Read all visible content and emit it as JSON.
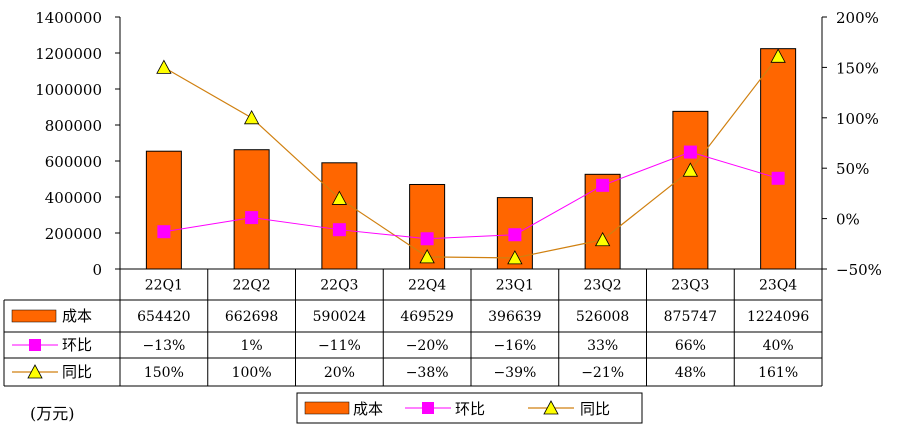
{
  "chart_data": {
    "type": "bar+line",
    "categories": [
      "22Q1",
      "22Q2",
      "22Q3",
      "22Q4",
      "23Q1",
      "23Q2",
      "23Q3",
      "23Q4"
    ],
    "series": [
      {
        "name": "成本",
        "kind": "bar",
        "axis": "left",
        "values": [
          654420,
          662698,
          590024,
          469529,
          396639,
          526008,
          875747,
          1224096
        ]
      },
      {
        "name": "环比",
        "kind": "line",
        "axis": "right",
        "values": [
          -13,
          1,
          -11,
          -20,
          -16,
          33,
          66,
          40
        ]
      },
      {
        "name": "同比",
        "kind": "line",
        "axis": "right",
        "values": [
          150,
          100,
          20,
          -38,
          -39,
          -21,
          48,
          161
        ]
      }
    ],
    "y_left": {
      "min": 0,
      "max": 1400000,
      "ticks": [
        "1400000",
        "1200000",
        "1000000",
        "800000",
        "600000",
        "400000",
        "200000",
        "0"
      ]
    },
    "y_right": {
      "min": -50,
      "max": 200,
      "ticks": [
        "200%",
        "150%",
        "100%",
        "50%",
        "0%",
        "-50%"
      ]
    },
    "table": {
      "rows": [
        {
          "label": "成本",
          "cells": [
            "654420",
            "662698",
            "590024",
            "469529",
            "396639",
            "526008",
            "875747",
            "1224096"
          ]
        },
        {
          "label": "环比",
          "cells": [
            "-13%",
            "1%",
            "-11%",
            "-20%",
            "-16%",
            "33%",
            "66%",
            "40%"
          ]
        },
        {
          "label": "同比",
          "cells": [
            "150%",
            "100%",
            "20%",
            "-38%",
            "-39%",
            "-21%",
            "48%",
            "161%"
          ]
        }
      ]
    },
    "legend": [
      "成本",
      "环比",
      "同比"
    ],
    "unit_label": "(万元)"
  },
  "colors": {
    "bar": "#FF6600",
    "bar_edge": "#000000",
    "mom_line": "#FF00FF",
    "mom_marker": "#FF00FF",
    "yoy_line": "#D08010",
    "yoy_marker": "#FFFF00",
    "axis": "#000000"
  }
}
